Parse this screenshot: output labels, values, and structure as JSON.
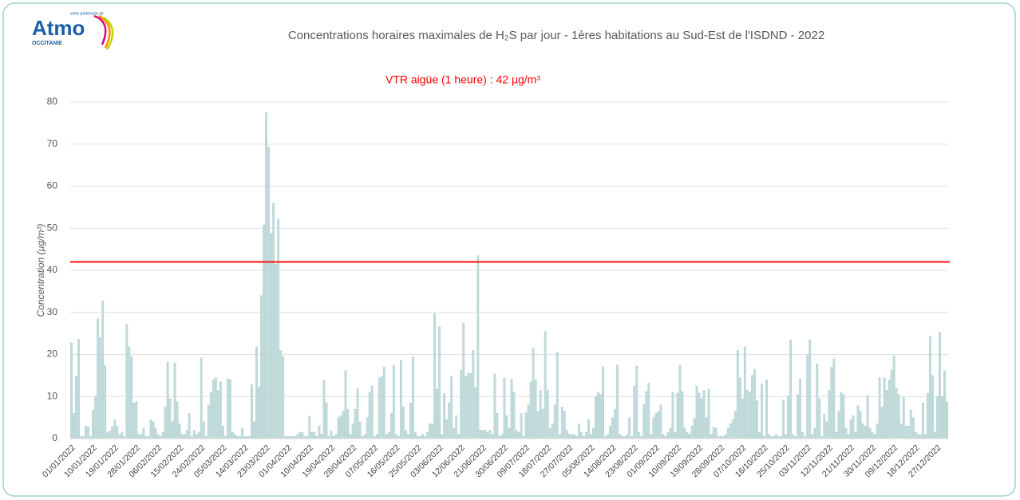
{
  "logo": {
    "name": "Atmo",
    "region": "OCCITANIE",
    "tagline": "votre partenaire air"
  },
  "chart_data": {
    "type": "bar",
    "title": "Concentrations horaires maximales de H₂S par jour - 1ères habitations au Sud-Est de l'ISDND - 2022",
    "y_label": "Concentration (µg/m³)",
    "color": "#c2dcdc",
    "edge_color": "#a9c9c9",
    "grid": true,
    "ylim": [
      0,
      80
    ],
    "yticks": [
      0,
      10,
      20,
      30,
      40,
      50,
      60,
      70,
      80
    ],
    "threshold": {
      "value": 42,
      "color": "#ff0000",
      "label": "VTR aigüe  (1 heure) : 42 µg/m³"
    },
    "categories": [
      "01/01/2022",
      null,
      null,
      null,
      null,
      null,
      null,
      null,
      null,
      "10/01/2022",
      null,
      null,
      null,
      null,
      null,
      null,
      null,
      null,
      "19/01/2022",
      null,
      null,
      null,
      null,
      null,
      null,
      null,
      null,
      "28/01/2022",
      null,
      null,
      null,
      null,
      null,
      null,
      null,
      null,
      "06/02/2022",
      null,
      null,
      null,
      null,
      null,
      null,
      null,
      null,
      "15/02/2022",
      null,
      null,
      null,
      null,
      null,
      null,
      null,
      null,
      "24/02/2022",
      null,
      null,
      null,
      null,
      null,
      null,
      null,
      null,
      "05/03/2022",
      null,
      null,
      null,
      null,
      null,
      null,
      null,
      null,
      "14/03/2022",
      null,
      null,
      null,
      null,
      null,
      null,
      null,
      null,
      "23/03/2022",
      null,
      null,
      null,
      null,
      null,
      null,
      null,
      null,
      "01/04/2022",
      null,
      null,
      null,
      null,
      null,
      null,
      null,
      null,
      "10/04/2022",
      null,
      null,
      null,
      null,
      null,
      null,
      null,
      null,
      "19/04/2022",
      null,
      null,
      null,
      null,
      null,
      null,
      null,
      null,
      "28/04/2022",
      null,
      null,
      null,
      null,
      null,
      null,
      null,
      null,
      "07/05/2022",
      null,
      null,
      null,
      null,
      null,
      null,
      null,
      null,
      "16/05/2022",
      null,
      null,
      null,
      null,
      null,
      null,
      null,
      null,
      "25/05/2022",
      null,
      null,
      null,
      null,
      null,
      null,
      null,
      null,
      "03/06/2022",
      null,
      null,
      null,
      null,
      null,
      null,
      null,
      null,
      "12/06/2022",
      null,
      null,
      null,
      null,
      null,
      null,
      null,
      null,
      "21/06/2022",
      null,
      null,
      null,
      null,
      null,
      null,
      null,
      null,
      "30/06/2022",
      null,
      null,
      null,
      null,
      null,
      null,
      null,
      null,
      "09/07/2022",
      null,
      null,
      null,
      null,
      null,
      null,
      null,
      null,
      "18/07/2022",
      null,
      null,
      null,
      null,
      null,
      null,
      null,
      null,
      "27/07/2022",
      null,
      null,
      null,
      null,
      null,
      null,
      null,
      null,
      "05/08/2022",
      null,
      null,
      null,
      null,
      null,
      null,
      null,
      null,
      "14/08/2022",
      null,
      null,
      null,
      null,
      null,
      null,
      null,
      null,
      "23/08/2022",
      null,
      null,
      null,
      null,
      null,
      null,
      null,
      null,
      "01/09/2022",
      null,
      null,
      null,
      null,
      null,
      null,
      null,
      null,
      "10/09/2022",
      null,
      null,
      null,
      null,
      null,
      null,
      null,
      null,
      "19/09/2022",
      null,
      null,
      null,
      null,
      null,
      null,
      null,
      null,
      "28/09/2022",
      null,
      null,
      null,
      null,
      null,
      null,
      null,
      null,
      "07/10/2022",
      null,
      null,
      null,
      null,
      null,
      null,
      null,
      null,
      "16/10/2022",
      null,
      null,
      null,
      null,
      null,
      null,
      null,
      null,
      "25/10/2022",
      null,
      null,
      null,
      null,
      null,
      null,
      null,
      null,
      "03/11/2022",
      null,
      null,
      null,
      null,
      null,
      null,
      null,
      null,
      "12/11/2022",
      null,
      null,
      null,
      null,
      null,
      null,
      null,
      null,
      "21/11/2022",
      null,
      null,
      null,
      null,
      null,
      null,
      null,
      null,
      "30/11/2022",
      null,
      null,
      null,
      null,
      null,
      null,
      null,
      null,
      "09/12/2022",
      null,
      null,
      null,
      null,
      null,
      null,
      null,
      null,
      "18/12/2022",
      null,
      null,
      null,
      null,
      null,
      null,
      null,
      null,
      "27/12/2022",
      null,
      null,
      null,
      null
    ],
    "values": [
      22.8,
      6,
      14.8,
      23.6,
      0.5,
      0.5,
      3,
      2.8,
      0.5,
      6.8,
      10,
      28.5,
      24,
      32.8,
      17.4,
      1.5,
      1.8,
      2.8,
      4.5,
      3,
      1,
      1.5,
      0.5,
      27.2,
      21.8,
      19.5,
      8.5,
      8.8,
      1,
      1,
      2.5,
      0.5,
      0.5,
      4.5,
      4,
      2.5,
      1,
      0.5,
      1.5,
      7.5,
      18.2,
      9.5,
      4,
      18,
      8.8,
      3.5,
      1,
      1,
      2,
      6,
      0.5,
      2,
      1,
      1.5,
      19.2,
      4,
      0.5,
      8,
      11,
      14,
      14.5,
      11.5,
      13.5,
      3,
      0.5,
      14.2,
      14,
      1.5,
      1,
      0.5,
      0.5,
      2.5,
      0.5,
      0.5,
      0.5,
      12.8,
      4,
      21.8,
      12.2,
      34,
      50.8,
      77.5,
      69.3,
      48.8,
      56,
      41.5,
      52.2,
      21,
      19.5,
      0.5,
      0.5,
      0.5,
      0.5,
      0.5,
      1,
      1.5,
      1.5,
      0.5,
      0.5,
      5.3,
      1.5,
      1.5,
      0.5,
      3,
      1,
      13.9,
      8.5,
      0.5,
      1.8,
      0.5,
      1,
      5,
      5.5,
      6.5,
      16.2,
      7,
      1,
      3.5,
      7,
      12,
      4,
      0.5,
      1,
      5,
      11,
      12.5,
      0.5,
      1,
      14.5,
      14.8,
      17,
      1,
      1.5,
      6,
      17.4,
      1,
      0.5,
      18.6,
      7.5,
      2,
      1,
      8.5,
      19.4,
      1.5,
      0.5,
      0.5,
      1,
      0.5,
      1.5,
      3.5,
      3.5,
      29.8,
      11.8,
      26.6,
      1,
      10.7,
      4.5,
      8.5,
      14.8,
      2.5,
      5.5,
      1,
      16.3,
      27.5,
      14.8,
      15.5,
      15.5,
      21,
      12.2,
      43.5,
      2,
      2,
      2,
      1.5,
      2,
      1,
      15.4,
      6,
      0.5,
      1,
      14.4,
      5.5,
      2.5,
      14.2,
      11,
      2,
      1.5,
      6,
      0.5,
      6.2,
      8,
      13.5,
      21.5,
      14,
      6.5,
      11.5,
      7,
      25.5,
      11.5,
      2.5,
      3.5,
      8,
      20.5,
      1,
      7.5,
      6.5,
      2,
      1,
      1,
      1,
      0.5,
      3.5,
      1.5,
      0.5,
      1.5,
      4.5,
      1,
      2.5,
      10,
      11,
      10.5,
      17,
      0.5,
      1,
      3,
      5,
      7,
      17.5,
      1,
      0.5,
      0.5,
      1,
      5,
      0.5,
      12.5,
      17.2,
      1.5,
      0.5,
      8.2,
      11.2,
      13.2,
      1,
      5,
      6,
      6.5,
      8,
      1,
      0.5,
      1.5,
      2.5,
      11,
      1.5,
      10.8,
      17.5,
      11.2,
      2.5,
      1.5,
      1,
      3,
      4.8,
      12.5,
      10.8,
      9.5,
      11.5,
      5,
      11.8,
      1,
      2.8,
      2.5,
      0.5,
      0.5,
      0.5,
      1,
      2.5,
      3.5,
      4.5,
      6.5,
      21,
      14.5,
      9.5,
      21.8,
      11.5,
      11,
      15,
      16.5,
      9,
      1.5,
      13,
      0.5,
      14,
      1,
      0.5,
      0.5,
      1,
      0.5,
      0.5,
      9.2,
      1,
      10.2,
      23.5,
      1,
      0.5,
      10.5,
      14.2,
      1.5,
      0.5,
      19.8,
      23.5,
      1,
      2.5,
      17.8,
      9.5,
      0.5,
      5.8,
      4,
      11.5,
      17,
      19,
      1.5,
      6.5,
      11,
      10.5,
      2.5,
      1,
      4.5,
      5.5,
      1.5,
      7.8,
      6.5,
      3.5,
      3,
      10.2,
      2.5,
      1.5,
      1,
      3.5,
      14.5,
      7.5,
      14.5,
      11.5,
      14,
      16.3,
      19.7,
      12,
      10.5,
      3.5,
      9.8,
      3,
      3,
      6.8,
      5,
      1.5,
      1,
      1,
      8.5,
      1,
      10.8,
      24.3,
      15,
      1.5,
      10,
      25.3,
      10,
      16.2,
      8.8
    ]
  }
}
